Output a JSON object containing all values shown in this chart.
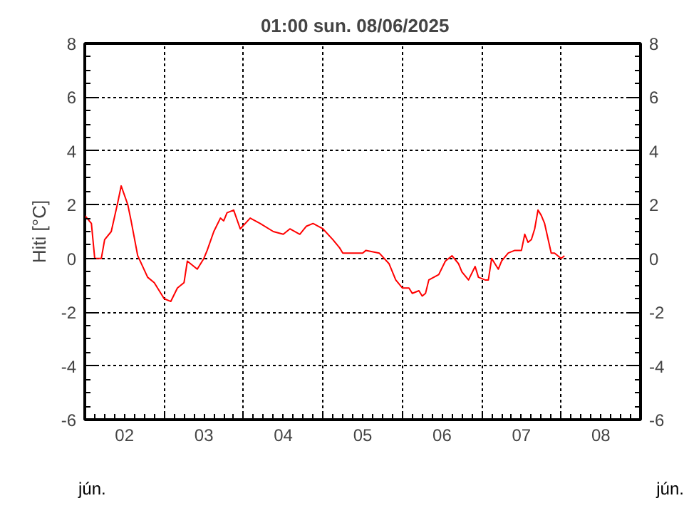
{
  "chart_data": {
    "type": "line",
    "title": "01:00   sun.  08/06/2025",
    "ylabel": "Hiti [°C]",
    "annotations": [
      "jún.",
      "jún."
    ],
    "x": [
      "2025-06-02T00:00",
      "2025-06-02T02:00",
      "2025-06-02T03:00",
      "2025-06-02T05:00",
      "2025-06-02T06:00",
      "2025-06-02T08:00",
      "2025-06-02T10:00",
      "2025-06-02T11:00",
      "2025-06-02T13:00",
      "2025-06-02T14:00",
      "2025-06-02T16:00",
      "2025-06-02T19:00",
      "2025-06-02T21:00",
      "2025-06-03T00:00",
      "2025-06-03T02:00",
      "2025-06-03T04:00",
      "2025-06-03T06:00",
      "2025-06-03T07:00",
      "2025-06-03T08:00",
      "2025-06-03T10:00",
      "2025-06-03T12:00",
      "2025-06-03T13:00",
      "2025-06-03T15:00",
      "2025-06-03T17:00",
      "2025-06-03T18:00",
      "2025-06-03T19:00",
      "2025-06-03T21:00",
      "2025-06-03T23:00",
      "2025-06-04T02:00",
      "2025-06-04T05:00",
      "2025-06-04T09:00",
      "2025-06-04T12:00",
      "2025-06-04T14:00",
      "2025-06-04T17:00",
      "2025-06-04T19:00",
      "2025-06-04T21:00",
      "2025-06-05T00:00",
      "2025-06-05T03:00",
      "2025-06-05T05:00",
      "2025-06-05T06:00",
      "2025-06-05T12:00",
      "2025-06-05T13:00",
      "2025-06-05T17:00",
      "2025-06-05T20:00",
      "2025-06-05T22:00",
      "2025-06-06T00:00",
      "2025-06-06T02:00",
      "2025-06-06T03:00",
      "2025-06-06T05:00",
      "2025-06-06T06:00",
      "2025-06-06T07:00",
      "2025-06-06T08:00",
      "2025-06-06T11:00",
      "2025-06-06T13:00",
      "2025-06-06T15:00",
      "2025-06-06T17:00",
      "2025-06-06T18:00",
      "2025-06-06T20:00",
      "2025-06-06T22:00",
      "2025-06-06T23:00",
      "2025-06-07T01:00",
      "2025-06-07T02:00",
      "2025-06-07T03:00",
      "2025-06-07T05:00",
      "2025-06-07T06:00",
      "2025-06-07T08:00",
      "2025-06-07T10:00",
      "2025-06-07T12:00",
      "2025-06-07T13:00",
      "2025-06-07T14:00",
      "2025-06-07T15:00",
      "2025-06-07T16:00",
      "2025-06-07T17:00",
      "2025-06-07T18:00",
      "2025-06-07T19:00",
      "2025-06-07T21:00",
      "2025-06-07T22:00",
      "2025-06-08T00:00",
      "2025-06-08T01:00"
    ],
    "series": [
      {
        "color": "#ff0000",
        "values": [
          1.6,
          1.3,
          0.0,
          0.0,
          0.7,
          1.0,
          2.1,
          2.7,
          2.0,
          1.4,
          0.1,
          -0.7,
          -0.9,
          -1.5,
          -1.6,
          -1.1,
          -0.9,
          -0.1,
          -0.2,
          -0.4,
          0.0,
          0.3,
          1.0,
          1.5,
          1.4,
          1.7,
          1.8,
          1.1,
          1.5,
          1.3,
          1.0,
          0.9,
          1.1,
          0.9,
          1.2,
          1.3,
          1.1,
          0.7,
          0.4,
          0.2,
          0.2,
          0.3,
          0.2,
          -0.2,
          -0.8,
          -1.1,
          -1.1,
          -1.3,
          -1.2,
          -1.4,
          -1.3,
          -0.8,
          -0.6,
          -0.1,
          0.1,
          -0.2,
          -0.5,
          -0.8,
          -0.3,
          -0.7,
          -0.8,
          -0.8,
          0.0,
          -0.4,
          -0.1,
          0.2,
          0.3,
          0.3,
          0.9,
          0.6,
          0.7,
          1.1,
          1.8,
          1.6,
          1.3,
          0.2,
          0.2,
          0.0,
          0.1
        ]
      }
    ],
    "xlim": [
      "2025-06-02T00:00",
      "2025-06-09T00:00"
    ],
    "xticks": [
      {
        "value": "2025-06-02T12:00",
        "label": "02"
      },
      {
        "value": "2025-06-03T00:00",
        "label": null
      },
      {
        "value": "2025-06-03T12:00",
        "label": "03"
      },
      {
        "value": "2025-06-04T00:00",
        "label": null
      },
      {
        "value": "2025-06-04T12:00",
        "label": "04"
      },
      {
        "value": "2025-06-05T00:00",
        "label": null
      },
      {
        "value": "2025-06-05T12:00",
        "label": "05"
      },
      {
        "value": "2025-06-06T00:00",
        "label": null
      },
      {
        "value": "2025-06-06T12:00",
        "label": "06"
      },
      {
        "value": "2025-06-07T00:00",
        "label": null
      },
      {
        "value": "2025-06-07T12:00",
        "label": "07"
      },
      {
        "value": "2025-06-08T00:00",
        "label": null
      },
      {
        "value": "2025-06-08T12:00",
        "label": "08"
      }
    ],
    "ylim": [
      -6,
      8
    ],
    "yticks": [
      -6,
      -4,
      -2,
      0,
      2,
      4,
      6,
      8
    ],
    "y2lim": [
      -6,
      8
    ],
    "y2ticks": [
      -6,
      -4,
      -2,
      0,
      2,
      4,
      6,
      8
    ],
    "grid": true,
    "line_style": "solid"
  }
}
